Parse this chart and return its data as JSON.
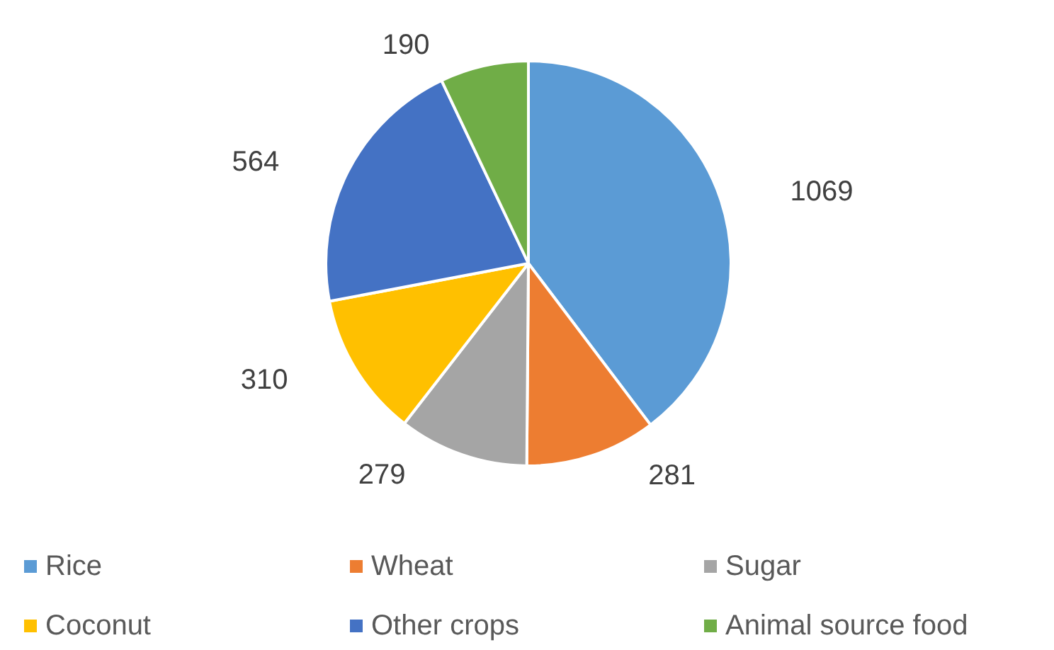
{
  "chart_data": {
    "type": "pie",
    "categories": [
      "Rice",
      "Wheat",
      "Sugar",
      "Coconut",
      "Other crops",
      "Animal source food"
    ],
    "values": [
      1069,
      281,
      279,
      310,
      564,
      190
    ],
    "colors": [
      "#5b9bd5",
      "#ed7d31",
      "#a5a5a5",
      "#ffc000",
      "#4472c4",
      "#70ad47"
    ],
    "data_labels": true,
    "legend": "bottom"
  }
}
